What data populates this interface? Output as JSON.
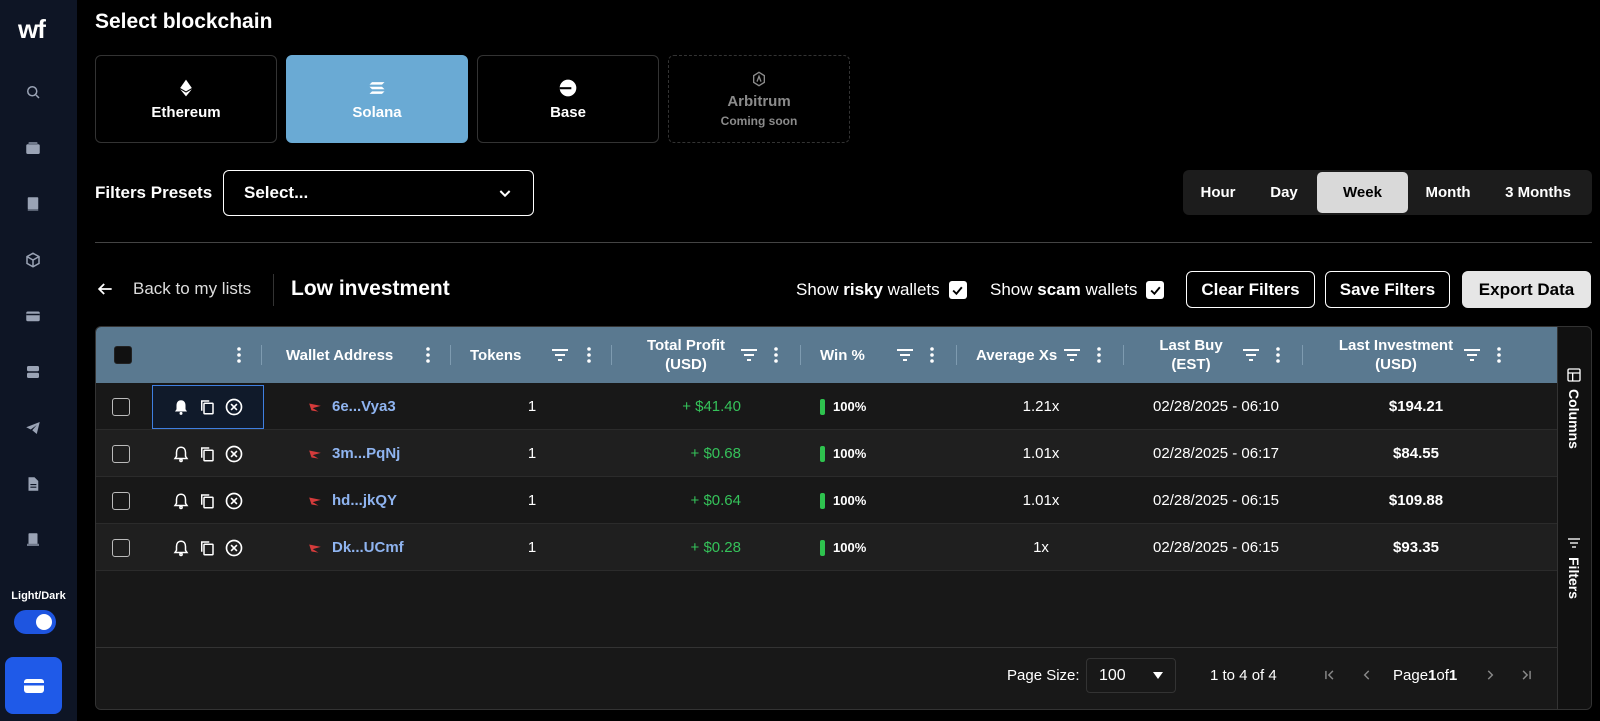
{
  "sidebar": {
    "logo": "wf",
    "theme_label": "Light/Dark"
  },
  "chains": {
    "title": "Select blockchain",
    "items": [
      {
        "label": "Ethereum",
        "sub": ""
      },
      {
        "label": "Solana",
        "sub": ""
      },
      {
        "label": "Base",
        "sub": ""
      },
      {
        "label": "Arbitrum",
        "sub": "Coming soon"
      }
    ]
  },
  "presets": {
    "label": "Filters Presets",
    "value": "Select..."
  },
  "time_range": {
    "options": [
      "Hour",
      "Day",
      "Week",
      "Month",
      "3 Months"
    ],
    "selected": "Week"
  },
  "toolbar": {
    "back": "Back to my lists",
    "list_name": "Low investment",
    "risky_pre": "Show ",
    "risky_bold": "risky",
    "risky_post": " wallets",
    "scam_pre": "Show ",
    "scam_bold": "scam",
    "scam_post": " wallets",
    "clear": "Clear Filters",
    "save": "Save Filters",
    "export": "Export Data"
  },
  "table": {
    "headers": {
      "wallet": "Wallet Address",
      "tokens": "Tokens",
      "profit_1": "Total Profit",
      "profit_2": "(USD)",
      "win": "Win %",
      "avg": "Average Xs",
      "lastbuy_1": "Last Buy",
      "lastbuy_2": "(EST)",
      "lastinv_1": "Last Investment",
      "lastinv_2": "(USD)"
    },
    "rows": [
      {
        "wallet": "6e...Vya3",
        "tokens": "1",
        "profit": "+ $41.40",
        "win": "100%",
        "avg": "1.21x",
        "last_buy": "02/28/2025 - 06:10",
        "last_investment": "$194.21"
      },
      {
        "wallet": "3m...PqNj",
        "tokens": "1",
        "profit": "+ $0.68",
        "win": "100%",
        "avg": "1.01x",
        "last_buy": "02/28/2025 - 06:17",
        "last_investment": "$84.55"
      },
      {
        "wallet": "hd...jkQY",
        "tokens": "1",
        "profit": "+ $0.64",
        "win": "100%",
        "avg": "1.01x",
        "last_buy": "02/28/2025 - 06:15",
        "last_investment": "$109.88"
      },
      {
        "wallet": "Dk...UCmf",
        "tokens": "1",
        "profit": "+ $0.28",
        "win": "100%",
        "avg": "1x",
        "last_buy": "02/28/2025 - 06:15",
        "last_investment": "$93.35"
      }
    ],
    "side_tabs": {
      "columns": "Columns",
      "filters": "Filters"
    }
  },
  "pagination": {
    "page_size_label": "Page Size:",
    "page_size": "100",
    "range": "1 to 4 of 4",
    "page_prefix": "Page ",
    "page_current": "1",
    "page_of": " of ",
    "page_total": "1"
  },
  "colors": {
    "accent_active_chain": "#6aaad4",
    "header_bg": "#5a7990",
    "profit_green": "#35c25a",
    "address_blue": "#8fb4f0",
    "primary_blue": "#1f5ae8"
  }
}
